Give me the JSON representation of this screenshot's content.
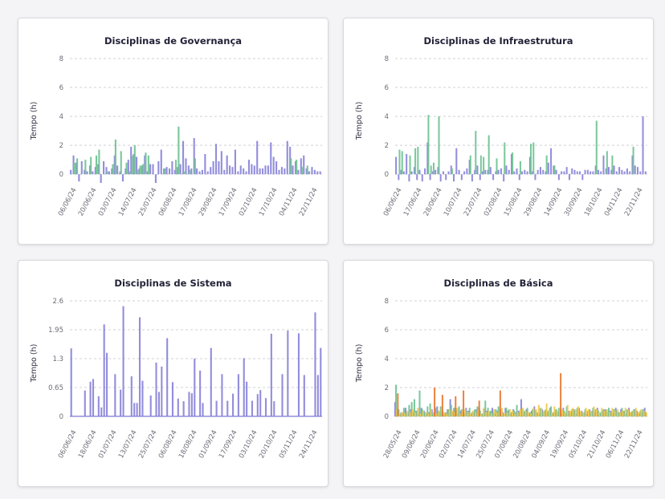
{
  "colors": {
    "purple": "#8a84d9",
    "green": "#6fc293",
    "orange": "#e8782e",
    "yellow": "#f2c94c",
    "grid": "#d0d0d6"
  },
  "chart_data": [
    {
      "id": "governanca",
      "type": "bar",
      "title": "Disciplinas de Governança",
      "ylabel": "Tempo (h)",
      "ylim": [
        -0.6,
        8
      ],
      "yticks": [
        0,
        2,
        4,
        6,
        8
      ],
      "ytick_labels": [
        "0",
        "2",
        "4",
        "6",
        "8"
      ],
      "xtick_labels": [
        "06/06/24",
        "20/06/24",
        "03/07/24",
        "14/07/24",
        "25/07/24",
        "06/08/24",
        "17/08/24",
        "29/08/24",
        "17/09/24",
        "02/10/24",
        "17/10/24",
        "04/11/24",
        "22/11/24"
      ],
      "n_bars": 92,
      "series": [
        {
          "color": "purple",
          "values": [
            0.3,
            1.3,
            0.8,
            -0.5,
            0.9,
            0.3,
            0.2,
            0.6,
            0.2,
            0.5,
            0.7,
            -0.6,
            0.9,
            0.5,
            0.2,
            0.4,
            1.3,
            0.6,
            0.2,
            -0.5,
            0.4,
            1.0,
            1.9,
            1.4,
            1.2,
            0.4,
            0.6,
            1.3,
            0.2,
            0.7,
            0.7,
            -0.6,
            0.9,
            1.7,
            0.4,
            0.5,
            0.4,
            0.9,
            0.3,
            0.5,
            0.7,
            2.3,
            1.1,
            0.6,
            0.4,
            2.5,
            0.4,
            0.2,
            0.3,
            1.4,
            0.2,
            0.5,
            0.9,
            2.1,
            0.9,
            1.6,
            0.3,
            1.3,
            0.6,
            0.5,
            1.7,
            0.2,
            0.6,
            0.4,
            0.2,
            1.0,
            0.7,
            0.6,
            2.3,
            0.4,
            0.4,
            0.6,
            0.6,
            2.2,
            1.2,
            0.9,
            0.3,
            0.5,
            0.4,
            2.3,
            1.9,
            0.6,
            0.9,
            0.3,
            1.1,
            1.3,
            0.4,
            0.2,
            0.5,
            0.3,
            0.2,
            0.2
          ]
        },
        {
          "color": "green",
          "values": [
            0.0,
            0.8,
            1.1,
            0.0,
            0.0,
            1.0,
            0.0,
            1.2,
            0.0,
            1.3,
            1.7,
            0.0,
            0.0,
            0.2,
            0.0,
            0.7,
            2.4,
            0.0,
            1.6,
            0.0,
            0.8,
            0.2,
            1.3,
            2.0,
            0.3,
            0.6,
            0.7,
            1.5,
            1.3,
            0.0,
            0.0,
            0.0,
            0.0,
            0.0,
            0.4,
            0.0,
            0.0,
            0.0,
            1.0,
            3.3,
            0.0,
            0.2,
            0.0,
            0.3,
            0.0,
            1.1,
            0.0,
            0.0,
            0.0,
            0.0,
            0.0,
            0.0,
            0.0,
            0.0,
            0.0,
            0.0,
            0.0,
            0.0,
            0.0,
            0.0,
            0.0,
            0.0,
            0.0,
            0.0,
            0.0,
            0.0,
            0.0,
            0.0,
            0.0,
            0.0,
            0.0,
            0.0,
            0.0,
            0.0,
            0.0,
            0.0,
            0.0,
            0.0,
            0.0,
            0.0,
            1.1,
            0.0,
            1.0,
            0.0,
            0.5,
            0.0,
            0.6,
            0.0,
            0.0,
            0.0,
            0.0,
            0.0
          ]
        }
      ]
    },
    {
      "id": "infraestrutura",
      "type": "bar",
      "title": "Disciplinas de Infraestrutura",
      "ylabel": "Tempo (h)",
      "ylim": [
        -0.6,
        8
      ],
      "yticks": [
        0,
        2,
        4,
        6,
        8
      ],
      "ytick_labels": [
        "0",
        "2",
        "4",
        "6",
        "8"
      ],
      "xtick_labels": [
        "06/06/24",
        "17/06/24",
        "28/06/24",
        "10/07/24",
        "22/07/24",
        "02/08/24",
        "15/08/24",
        "29/08/24",
        "14/09/24",
        "30/09/24",
        "18/10/24",
        "04/11/24",
        "22/11/24"
      ],
      "n_bars": 96,
      "series": [
        {
          "color": "purple",
          "values": [
            1.2,
            -0.4,
            0.3,
            0.2,
            1.4,
            -0.5,
            0.2,
            0.5,
            -0.4,
            0.3,
            -0.5,
            0.4,
            2.2,
            -0.4,
            0.2,
            0.3,
            0.5,
            -0.5,
            0.2,
            -0.4,
            0.2,
            0.6,
            -0.5,
            1.8,
            0.3,
            -0.4,
            0.2,
            0.4,
            1.0,
            -0.5,
            0.3,
            0.6,
            -0.4,
            0.2,
            0.3,
            0.3,
            0.5,
            -0.4,
            0.2,
            0.3,
            0.4,
            -0.5,
            0.6,
            0.3,
            1.4,
            0.2,
            0.4,
            -0.4,
            0.2,
            0.3,
            0.2,
            1.2,
            0.2,
            -0.4,
            0.3,
            0.5,
            0.3,
            0.2,
            0.8,
            1.8,
            0.6,
            0.3,
            -0.4,
            0.2,
            0.2,
            0.5,
            -0.4,
            0.4,
            0.3,
            0.2,
            0.2,
            -0.4,
            0.3,
            0.3,
            0.2,
            0.2,
            0.6,
            0.3,
            0.2,
            1.3,
            0.4,
            0.5,
            0.3,
            0.6,
            0.2,
            0.5,
            0.3,
            0.2,
            0.4,
            0.2,
            1.3,
            0.6,
            0.5,
            0.2,
            4.0,
            0.2
          ]
        },
        {
          "color": "green",
          "values": [
            0.0,
            1.7,
            1.6,
            0.0,
            0.0,
            1.3,
            0.0,
            1.8,
            1.9,
            0.0,
            0.0,
            0.0,
            4.1,
            0.6,
            0.8,
            0.0,
            4.0,
            0.0,
            0.0,
            0.0,
            0.0,
            0.4,
            0.0,
            0.0,
            0.0,
            0.0,
            0.0,
            0.0,
            1.3,
            0.0,
            3.0,
            0.0,
            1.3,
            1.2,
            0.0,
            2.7,
            0.0,
            0.0,
            1.1,
            0.0,
            0.0,
            2.2,
            0.0,
            0.0,
            1.5,
            0.0,
            0.0,
            0.9,
            0.0,
            0.0,
            0.0,
            2.1,
            2.2,
            0.0,
            0.0,
            0.0,
            0.0,
            1.3,
            0.0,
            0.0,
            0.6,
            0.0,
            0.0,
            0.0,
            0.0,
            0.0,
            0.0,
            0.0,
            0.0,
            0.0,
            0.0,
            0.0,
            0.0,
            0.0,
            0.0,
            0.0,
            3.7,
            0.0,
            0.0,
            0.0,
            1.6,
            0.0,
            1.3,
            0.0,
            0.0,
            0.0,
            0.0,
            0.0,
            0.0,
            0.0,
            1.9,
            0.0,
            0.0,
            0.0,
            0.0,
            0.0
          ]
        }
      ]
    },
    {
      "id": "sistema",
      "type": "bar",
      "title": "Disciplinas de Sistema",
      "ylabel": "Tempo (h)",
      "ylim": [
        -0.2,
        2.6
      ],
      "yticks": [
        0,
        0.65,
        1.3,
        1.95,
        2.6
      ],
      "ytick_labels": [
        "0",
        "0.65",
        "1.3",
        "1.95",
        "2.6"
      ],
      "xtick_labels": [
        "06/06/24",
        "18/06/24",
        "01/07/24",
        "13/07/24",
        "25/07/24",
        "06/08/24",
        "18/08/24",
        "01/09/24",
        "17/09/24",
        "03/10/24",
        "20/10/24",
        "05/11/24",
        "24/11/24"
      ],
      "n_bars": 92,
      "series": [
        {
          "color": "purple",
          "values": [
            1.53,
            0,
            0,
            0,
            0,
            0.58,
            0,
            0.78,
            0.84,
            0,
            0.45,
            0.2,
            2.07,
            1.43,
            0,
            0,
            0.95,
            0,
            0.6,
            2.48,
            0,
            0,
            0.9,
            0.3,
            0.3,
            2.23,
            0.8,
            0,
            0,
            0.47,
            0,
            1.21,
            0.55,
            1.12,
            0,
            1.76,
            0,
            0.77,
            0,
            0.4,
            0,
            0.34,
            0,
            0.55,
            0.52,
            1.3,
            0,
            1.03,
            0.3,
            0,
            0,
            1.54,
            0,
            0.35,
            0,
            0.95,
            0,
            0.35,
            0,
            0.51,
            0,
            0.95,
            0,
            1.31,
            0.78,
            0,
            0.35,
            0,
            0.5,
            0.59,
            0,
            0.41,
            0,
            1.86,
            0.34,
            0,
            0,
            0.95,
            0,
            1.93,
            0,
            0,
            0,
            1.87,
            0,
            0.93,
            0,
            0,
            0,
            2.34,
            0.93,
            1.54
          ]
        }
      ]
    },
    {
      "id": "basica",
      "type": "bar",
      "title": "Disciplinas de Básica",
      "ylabel": "Tempo (h)",
      "ylim": [
        -0.6,
        8
      ],
      "yticks": [
        0,
        2,
        4,
        6,
        8
      ],
      "ytick_labels": [
        "0",
        "2",
        "4",
        "6",
        "8"
      ],
      "xtick_labels": [
        "28/05/24",
        "09/06/24",
        "20/06/24",
        "02/07/24",
        "14/07/24",
        "25/07/24",
        "07/08/24",
        "20/08/24",
        "04/09/24",
        "19/09/24",
        "05/10/24",
        "21/10/24",
        "06/11/24",
        "22/11/24"
      ],
      "n_bars": 96,
      "series": [
        {
          "color": "purple",
          "values": [
            1.0,
            0.4,
            0.2,
            0.2,
            0.6,
            0.3,
            0.5,
            0.3,
            0.4,
            0.2,
            0.6,
            0.4,
            0.2,
            0.3,
            0.5,
            0.2,
            0.7,
            0.3,
            0.4,
            0.2,
            0.5,
            1.2,
            0.3,
            0.6,
            0.2,
            0.4,
            0.3,
            0.6,
            0.4,
            0.2,
            0.3,
            0.5,
            0.6,
            0.2,
            0.5,
            0.4,
            0.3,
            0.6,
            0.2,
            0.4,
            0.5,
            0.3,
            0.6,
            0.4,
            0.2,
            0.5,
            0.3,
            0.4,
            1.2,
            0.3,
            0.5,
            0.2,
            0.4,
            0.7,
            0.3,
            0.2,
            0.5,
            0.4,
            0.3,
            0.6,
            0.2,
            0.4,
            0.3,
            0.5,
            0.6,
            0.2,
            0.4,
            0.3,
            0.5,
            0.2,
            0.6,
            0.4,
            0.3,
            0.2,
            0.5,
            0.4,
            0.3,
            0.6,
            0.2,
            0.4,
            0.5,
            0.3,
            0.4,
            0.2,
            0.6,
            0.3,
            0.5,
            0.4,
            0.2,
            0.6,
            0.3,
            0.5,
            0.4,
            0.2,
            0.3,
            0.6
          ]
        },
        {
          "color": "green",
          "values": [
            2.2,
            0.5,
            0.3,
            0.6,
            0.2,
            0.8,
            1.0,
            1.2,
            0.4,
            1.8,
            0.5,
            0.3,
            0.7,
            0.9,
            0.2,
            0.6,
            0.4,
            0.7,
            0.2,
            0.3,
            0.5,
            0.8,
            0.6,
            0.4,
            0.7,
            0.5,
            0.2,
            0.4,
            0.6,
            0.3,
            0.5,
            0.7,
            0.4,
            0.2,
            1.1,
            0.6,
            0.4,
            0.3,
            0.5,
            0.7,
            0.4,
            0.2,
            0.6,
            0.5,
            0.3,
            0.4,
            0.8,
            0.3,
            0.5,
            0.4,
            0.6,
            0.3,
            0.5,
            0.4,
            0.2,
            0.6,
            0.3,
            0.5,
            0.4,
            0.7,
            0.3,
            0.5,
            0.6,
            0.2,
            0.4,
            0.7,
            0.3,
            0.5,
            0.4,
            0.6,
            0.3,
            0.2,
            0.5,
            0.4,
            0.3,
            0.6,
            0.5,
            0.4,
            0.3,
            0.5,
            0.4,
            0.6,
            0.3,
            0.5,
            0.4,
            0.3,
            0.6,
            0.4,
            0.5,
            0.3,
            0.4,
            0.5,
            0.3,
            0.4,
            0.5,
            0.3
          ]
        },
        {
          "color": "yellow",
          "values": [
            0.5,
            0.2,
            0.3,
            0.2,
            0.4,
            0.3,
            0.5,
            0.3,
            0.6,
            0.2,
            0.4,
            0.3,
            0.2,
            0.5,
            0.3,
            0.2,
            0.4,
            0.6,
            0.3,
            0.2,
            0.5,
            0.4,
            0.3,
            0.6,
            0.2,
            0.4,
            0.5,
            0.3,
            0.2,
            0.4,
            0.3,
            0.5,
            0.2,
            0.6,
            0.3,
            0.4,
            0.2,
            0.5,
            0.3,
            0.4,
            0.6,
            0.2,
            0.3,
            0.5,
            0.4,
            0.2,
            0.3,
            0.5,
            0.6,
            0.4,
            0.3,
            0.2,
            0.6,
            0.5,
            0.8,
            0.6,
            0.4,
            0.9,
            0.5,
            0.3,
            0.7,
            0.4,
            0.6,
            0.5,
            0.3,
            0.8,
            0.4,
            0.6,
            0.5,
            0.7,
            0.4,
            0.3,
            0.6,
            0.5,
            0.4,
            0.7,
            0.5,
            0.3,
            0.6,
            0.4,
            0.5,
            0.3,
            0.6,
            0.4,
            0.5,
            0.3,
            0.4,
            0.6,
            0.5,
            0.3,
            0.4,
            0.6,
            0.3,
            0.5,
            0.4,
            0.3
          ]
        },
        {
          "color": "orange",
          "values": [
            1.6,
            0.0,
            0.0,
            0.0,
            0.0,
            0.0,
            0.0,
            0.0,
            0.0,
            0.0,
            0.0,
            0.0,
            0.0,
            0.0,
            2.0,
            0.0,
            0.0,
            1.5,
            0.0,
            0.0,
            0.0,
            0.0,
            1.4,
            0.0,
            0.0,
            1.8,
            0.0,
            0.0,
            0.0,
            0.0,
            0.0,
            1.1,
            0.0,
            0.0,
            0.0,
            0.0,
            0.0,
            0.0,
            0.0,
            1.8,
            0.0,
            0.0,
            0.0,
            0.0,
            0.0,
            0.0,
            0.0,
            0.0,
            0.0,
            0.0,
            0.0,
            0.0,
            0.0,
            0.0,
            0.0,
            0.0,
            0.0,
            0.0,
            0.0,
            0.0,
            0.0,
            0.0,
            3.0,
            0.0,
            0.0,
            0.0,
            0.0,
            0.0,
            0.0,
            0.0,
            0.0,
            0.0,
            0.0,
            0.0,
            0.0,
            0.0,
            0.0,
            0.0,
            0.0,
            0.0,
            0.0,
            0.0,
            0.0,
            0.0,
            0.0,
            0.0,
            0.0,
            0.0,
            0.0,
            0.0,
            0.0,
            0.0,
            0.0,
            0.0,
            0.0,
            0.0
          ]
        }
      ]
    }
  ]
}
